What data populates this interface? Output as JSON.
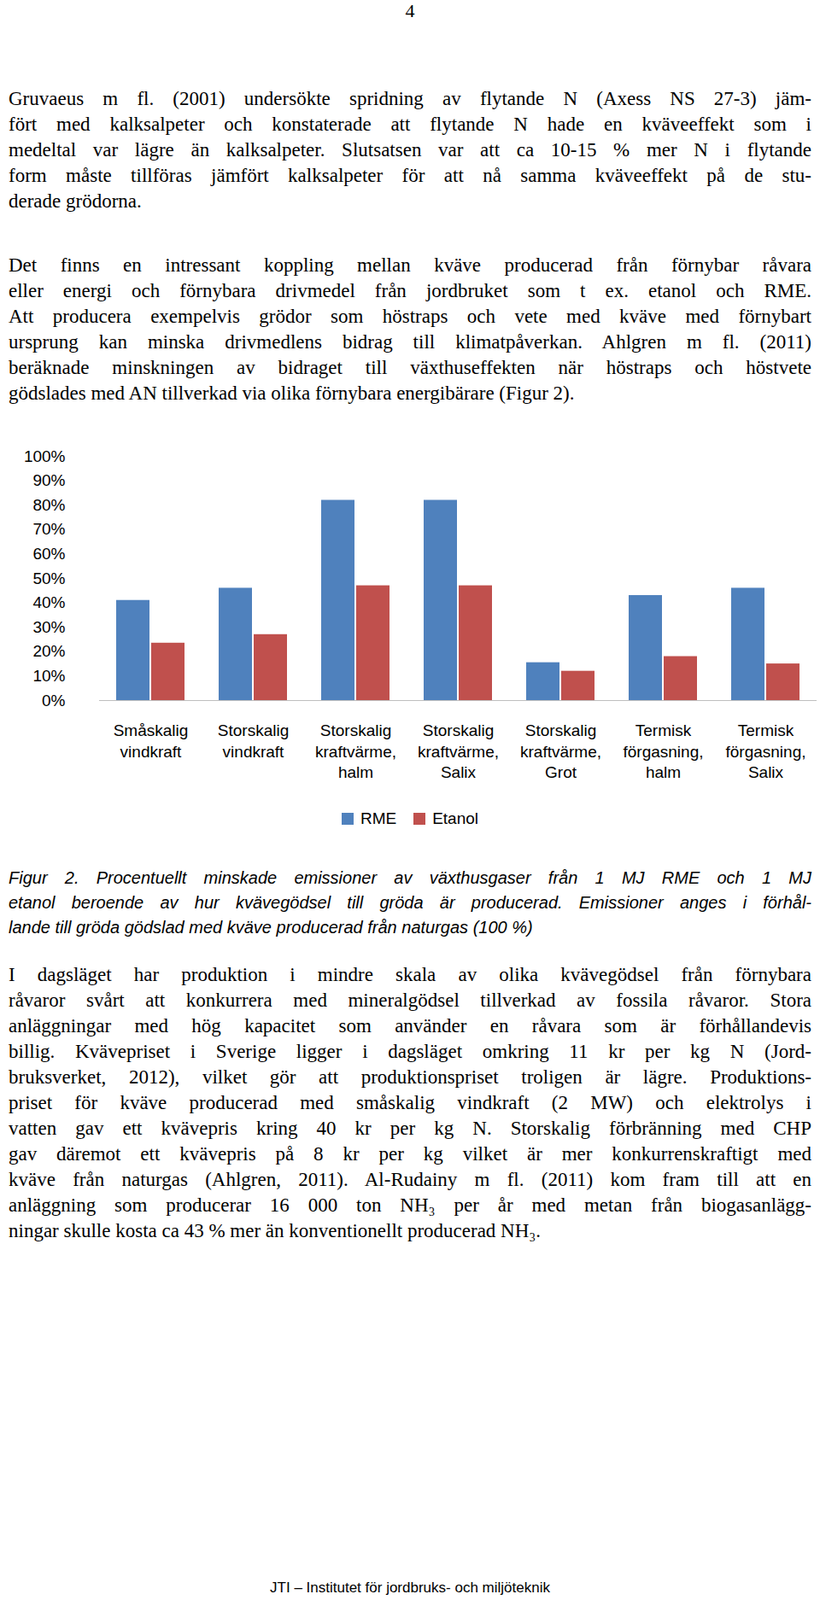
{
  "page_number": "4",
  "paragraphs_before": [
    [
      "Gruvaeus m fl. (2001) undersökte spridning av flytande N (Axess NS 27-3) jäm-",
      "fört med kalksalpeter och konstaterade att flytande N hade en kväveeffekt som i",
      "medeltal var lägre än kalksalpeter. Slutsatsen var att ca 10-15 % mer N i flytande",
      "form måste tillföras jämfört kalksalpeter för att nå samma kväveeffekt på de stu-",
      "derade grödorna."
    ],
    [
      "Det finns en intressant koppling mellan kväve producerad från förnybar råvara",
      "eller energi och förnybara drivmedel från jordbruket som t ex. etanol och RME.",
      "Att producera exempelvis grödor som höstraps och vete med kväve med förnybart",
      "ursprung kan minska drivmedlens bidrag till klimatpåverkan. Ahlgren m fl. (2011)",
      "beräknade minskningen av bidraget till växthuseffekten när höstraps och höstvete",
      "gödslades med AN tillverkad via olika förnybara energibärare (Figur 2)."
    ]
  ],
  "chart_data": {
    "type": "bar",
    "categories": [
      "Småskalig\nvindkraft",
      "Storskalig\nvindkraft",
      "Storskalig\nkraftvärme,\nhalm",
      "Storskalig\nkraftvärme,\nSalix",
      "Storskalig\nkraftvärme,\nGrot",
      "Termisk\nförgasning,\nhalm",
      "Termisk\nförgasning,\nSalix"
    ],
    "series": [
      {
        "name": "RME",
        "color": "#4f81bd",
        "values": [
          41,
          46,
          82,
          82,
          15.5,
          43,
          46
        ]
      },
      {
        "name": "Etanol",
        "color": "#c0504d",
        "values": [
          23.5,
          27,
          47,
          47,
          12,
          18,
          15
        ]
      }
    ],
    "ylim": [
      0,
      100
    ],
    "yticks": [
      {
        "value": 0,
        "label": "0%"
      },
      {
        "value": 10,
        "label": "10%"
      },
      {
        "value": 20,
        "label": "20%"
      },
      {
        "value": 30,
        "label": "30%"
      },
      {
        "value": 40,
        "label": "40%"
      },
      {
        "value": 50,
        "label": "50%"
      },
      {
        "value": 60,
        "label": "60%"
      },
      {
        "value": 70,
        "label": "70%"
      },
      {
        "value": 80,
        "label": "80%"
      },
      {
        "value": 90,
        "label": "90%"
      },
      {
        "value": 100,
        "label": "100%"
      }
    ],
    "grid": false,
    "legend": "bottom"
  },
  "caption": [
    "Figur 2. Procentuellt minskade emissioner av växthusgaser från 1 MJ RME och 1 MJ",
    "etanol beroende av hur kvävegödsel till gröda är producerad. Emissioner anges i förhål-",
    "lande till gröda gödslad med kväve producerad från naturgas (100 %)"
  ],
  "paragraphs_after": [
    [
      "I dagsläget har produktion i mindre skala av olika kvävegödsel från förnybara",
      "råvaror svårt att konkurrera med mineralgödsel tillverkad av fossila råvaror. Stora",
      "anläggningar med hög kapacitet som använder en råvara som är förhållandevis",
      "billig. Kvävepriset i Sverige ligger i dagsläget omkring 11 kr per kg N (Jord-",
      "bruksverket, 2012), vilket gör att produktionspriset troligen är lägre. Produktions-",
      "priset för kväve producerad med småskalig vindkraft (2 MW) och elektrolys i",
      "vatten gav ett kvävepris kring 40 kr per kg N. Storskalig förbränning med CHP",
      "gav däremot ett kvävepris på 8 kr per kg vilket är mer konkurrenskraftigt med",
      "kväve från naturgas (Ahlgren, 2011). Al-Rudainy m fl. (2011) kom fram till att en",
      "anläggning som producerar 16 000 ton NH₃ per år med metan från biogasanlägg-",
      "ningar skulle kosta ca 43 % mer än konventionellt producerad NH₃."
    ]
  ],
  "footer": "JTI – Institutet för jordbruks- och miljöteknik"
}
